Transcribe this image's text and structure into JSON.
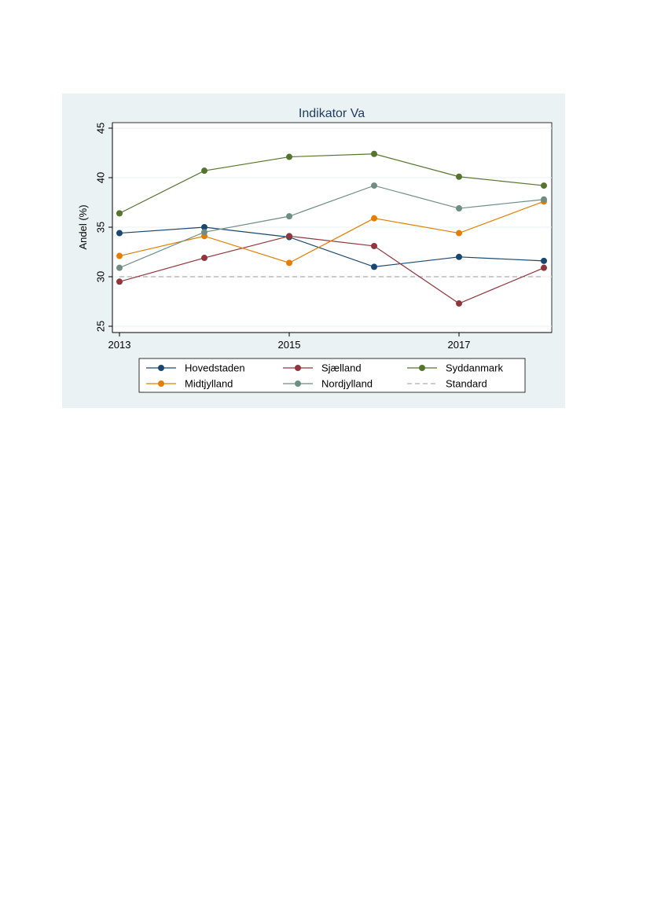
{
  "chart_data": {
    "type": "line",
    "title": "Indikator Va",
    "xlabel": "",
    "ylabel": "Andel (%)",
    "x": [
      2013,
      2014,
      2015,
      2016,
      2017,
      2018
    ],
    "x_ticks": [
      2013,
      2015,
      2017
    ],
    "xlim": [
      2013,
      2018
    ],
    "ylim": [
      25,
      45
    ],
    "y_ticks": [
      25,
      30,
      35,
      40,
      45
    ],
    "grid": true,
    "legend_position": "bottom",
    "series": [
      {
        "name": "Hovedstaden",
        "color": "#1a476f",
        "style": "solid-marker",
        "values": [
          34.4,
          35.0,
          34.0,
          31.0,
          32.0,
          31.6
        ]
      },
      {
        "name": "Sjælland",
        "color": "#90353b",
        "style": "solid-marker",
        "values": [
          29.5,
          31.9,
          34.1,
          33.1,
          27.3,
          30.9
        ]
      },
      {
        "name": "Syddanmark",
        "color": "#55752f",
        "style": "solid-marker",
        "values": [
          36.4,
          40.7,
          42.1,
          42.4,
          40.1,
          39.2
        ]
      },
      {
        "name": "Midtjylland",
        "color": "#e37e00",
        "style": "solid-marker",
        "values": [
          32.1,
          34.1,
          31.4,
          35.9,
          34.4,
          37.6
        ]
      },
      {
        "name": "Nordjylland",
        "color": "#6e8e84",
        "style": "solid-marker",
        "values": [
          30.9,
          34.5,
          36.1,
          39.2,
          36.9,
          37.8
        ]
      },
      {
        "name": "Standard",
        "color": "#999999",
        "style": "dashed",
        "values": [
          30,
          30,
          30,
          30,
          30,
          30
        ]
      }
    ]
  }
}
